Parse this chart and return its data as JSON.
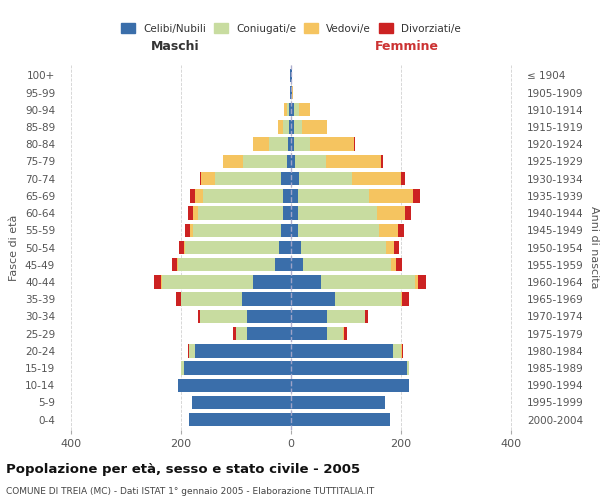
{
  "age_groups": [
    "0-4",
    "5-9",
    "10-14",
    "15-19",
    "20-24",
    "25-29",
    "30-34",
    "35-39",
    "40-44",
    "45-49",
    "50-54",
    "55-59",
    "60-64",
    "65-69",
    "70-74",
    "75-79",
    "80-84",
    "85-89",
    "90-94",
    "95-99",
    "100+"
  ],
  "birth_years": [
    "2000-2004",
    "1995-1999",
    "1990-1994",
    "1985-1989",
    "1980-1984",
    "1975-1979",
    "1970-1974",
    "1965-1969",
    "1960-1964",
    "1955-1959",
    "1950-1954",
    "1945-1949",
    "1940-1944",
    "1935-1939",
    "1930-1934",
    "1925-1929",
    "1920-1924",
    "1915-1919",
    "1910-1914",
    "1905-1909",
    "≤ 1904"
  ],
  "maschi": {
    "celibi": [
      185,
      180,
      205,
      195,
      175,
      80,
      80,
      90,
      70,
      30,
      22,
      18,
      15,
      15,
      18,
      8,
      5,
      4,
      3,
      2,
      2
    ],
    "coniugati": [
      0,
      0,
      0,
      5,
      10,
      20,
      85,
      110,
      165,
      175,
      170,
      160,
      155,
      145,
      120,
      80,
      35,
      10,
      5,
      0,
      0
    ],
    "vedovi": [
      0,
      0,
      0,
      0,
      0,
      0,
      0,
      0,
      2,
      2,
      3,
      5,
      8,
      15,
      25,
      35,
      30,
      10,
      5,
      0,
      0
    ],
    "divorziati": [
      0,
      0,
      0,
      0,
      2,
      5,
      5,
      10,
      12,
      10,
      8,
      10,
      10,
      8,
      2,
      0,
      0,
      0,
      0,
      0,
      0
    ]
  },
  "femmine": {
    "nubili": [
      180,
      170,
      215,
      210,
      185,
      65,
      65,
      80,
      55,
      22,
      18,
      12,
      12,
      12,
      15,
      8,
      5,
      5,
      5,
      2,
      2
    ],
    "coniugate": [
      0,
      0,
      0,
      5,
      15,
      30,
      70,
      120,
      170,
      160,
      155,
      148,
      145,
      130,
      95,
      55,
      30,
      15,
      10,
      0,
      0
    ],
    "vedove": [
      0,
      0,
      0,
      0,
      2,
      2,
      0,
      2,
      5,
      8,
      15,
      35,
      50,
      80,
      90,
      100,
      80,
      45,
      20,
      2,
      0
    ],
    "divorziate": [
      0,
      0,
      0,
      0,
      2,
      5,
      5,
      12,
      15,
      12,
      8,
      10,
      12,
      12,
      8,
      5,
      2,
      0,
      0,
      0,
      0
    ]
  },
  "colors": {
    "celibi": "#3a6eaa",
    "coniugati": "#c8dca0",
    "vedovi": "#f5c460",
    "divorziati": "#cc2222"
  },
  "title": "Popolazione per età, sesso e stato civile - 2005",
  "subtitle": "COMUNE DI TREIA (MC) - Dati ISTAT 1° gennaio 2005 - Elaborazione TUTTITALIA.IT",
  "ylabel_left": "Fasce di età",
  "ylabel_right": "Anni di nascita",
  "xlabel_left": "Maschi",
  "xlabel_right": "Femmine",
  "xlim": 420,
  "background_color": "#ffffff",
  "grid_color": "#cccccc"
}
